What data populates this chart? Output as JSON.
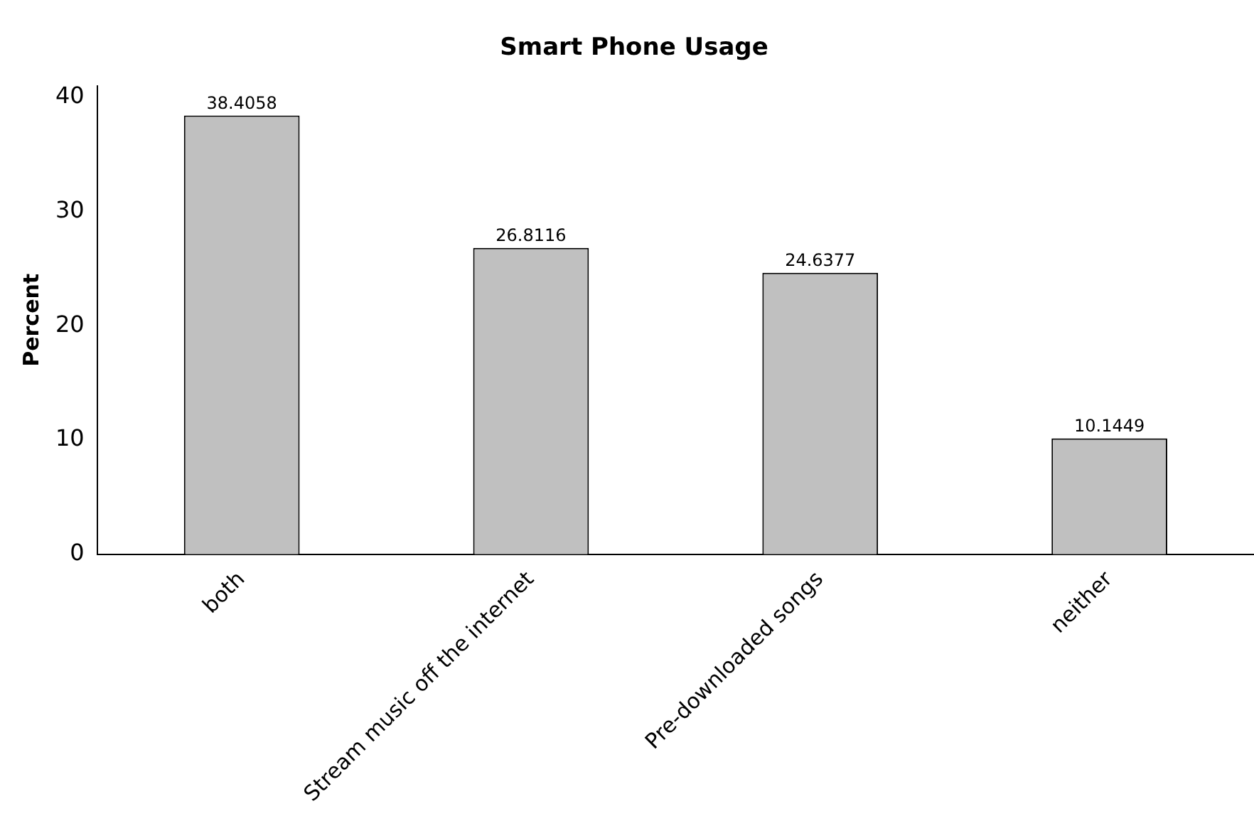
{
  "chart_data": {
    "type": "bar",
    "title": "Smart Phone Usage",
    "ylabel": "Percent",
    "categories": [
      "both",
      "Stream music off the internet",
      "Pre-downloaded songs",
      "neither"
    ],
    "values": [
      38.4058,
      26.8116,
      24.6377,
      10.1449
    ],
    "color": "#c0c0c0",
    "ylim": [
      0,
      41
    ],
    "yticks": [
      0,
      10,
      20,
      30,
      40
    ],
    "grid": false,
    "legend": false,
    "data_labels": true
  }
}
